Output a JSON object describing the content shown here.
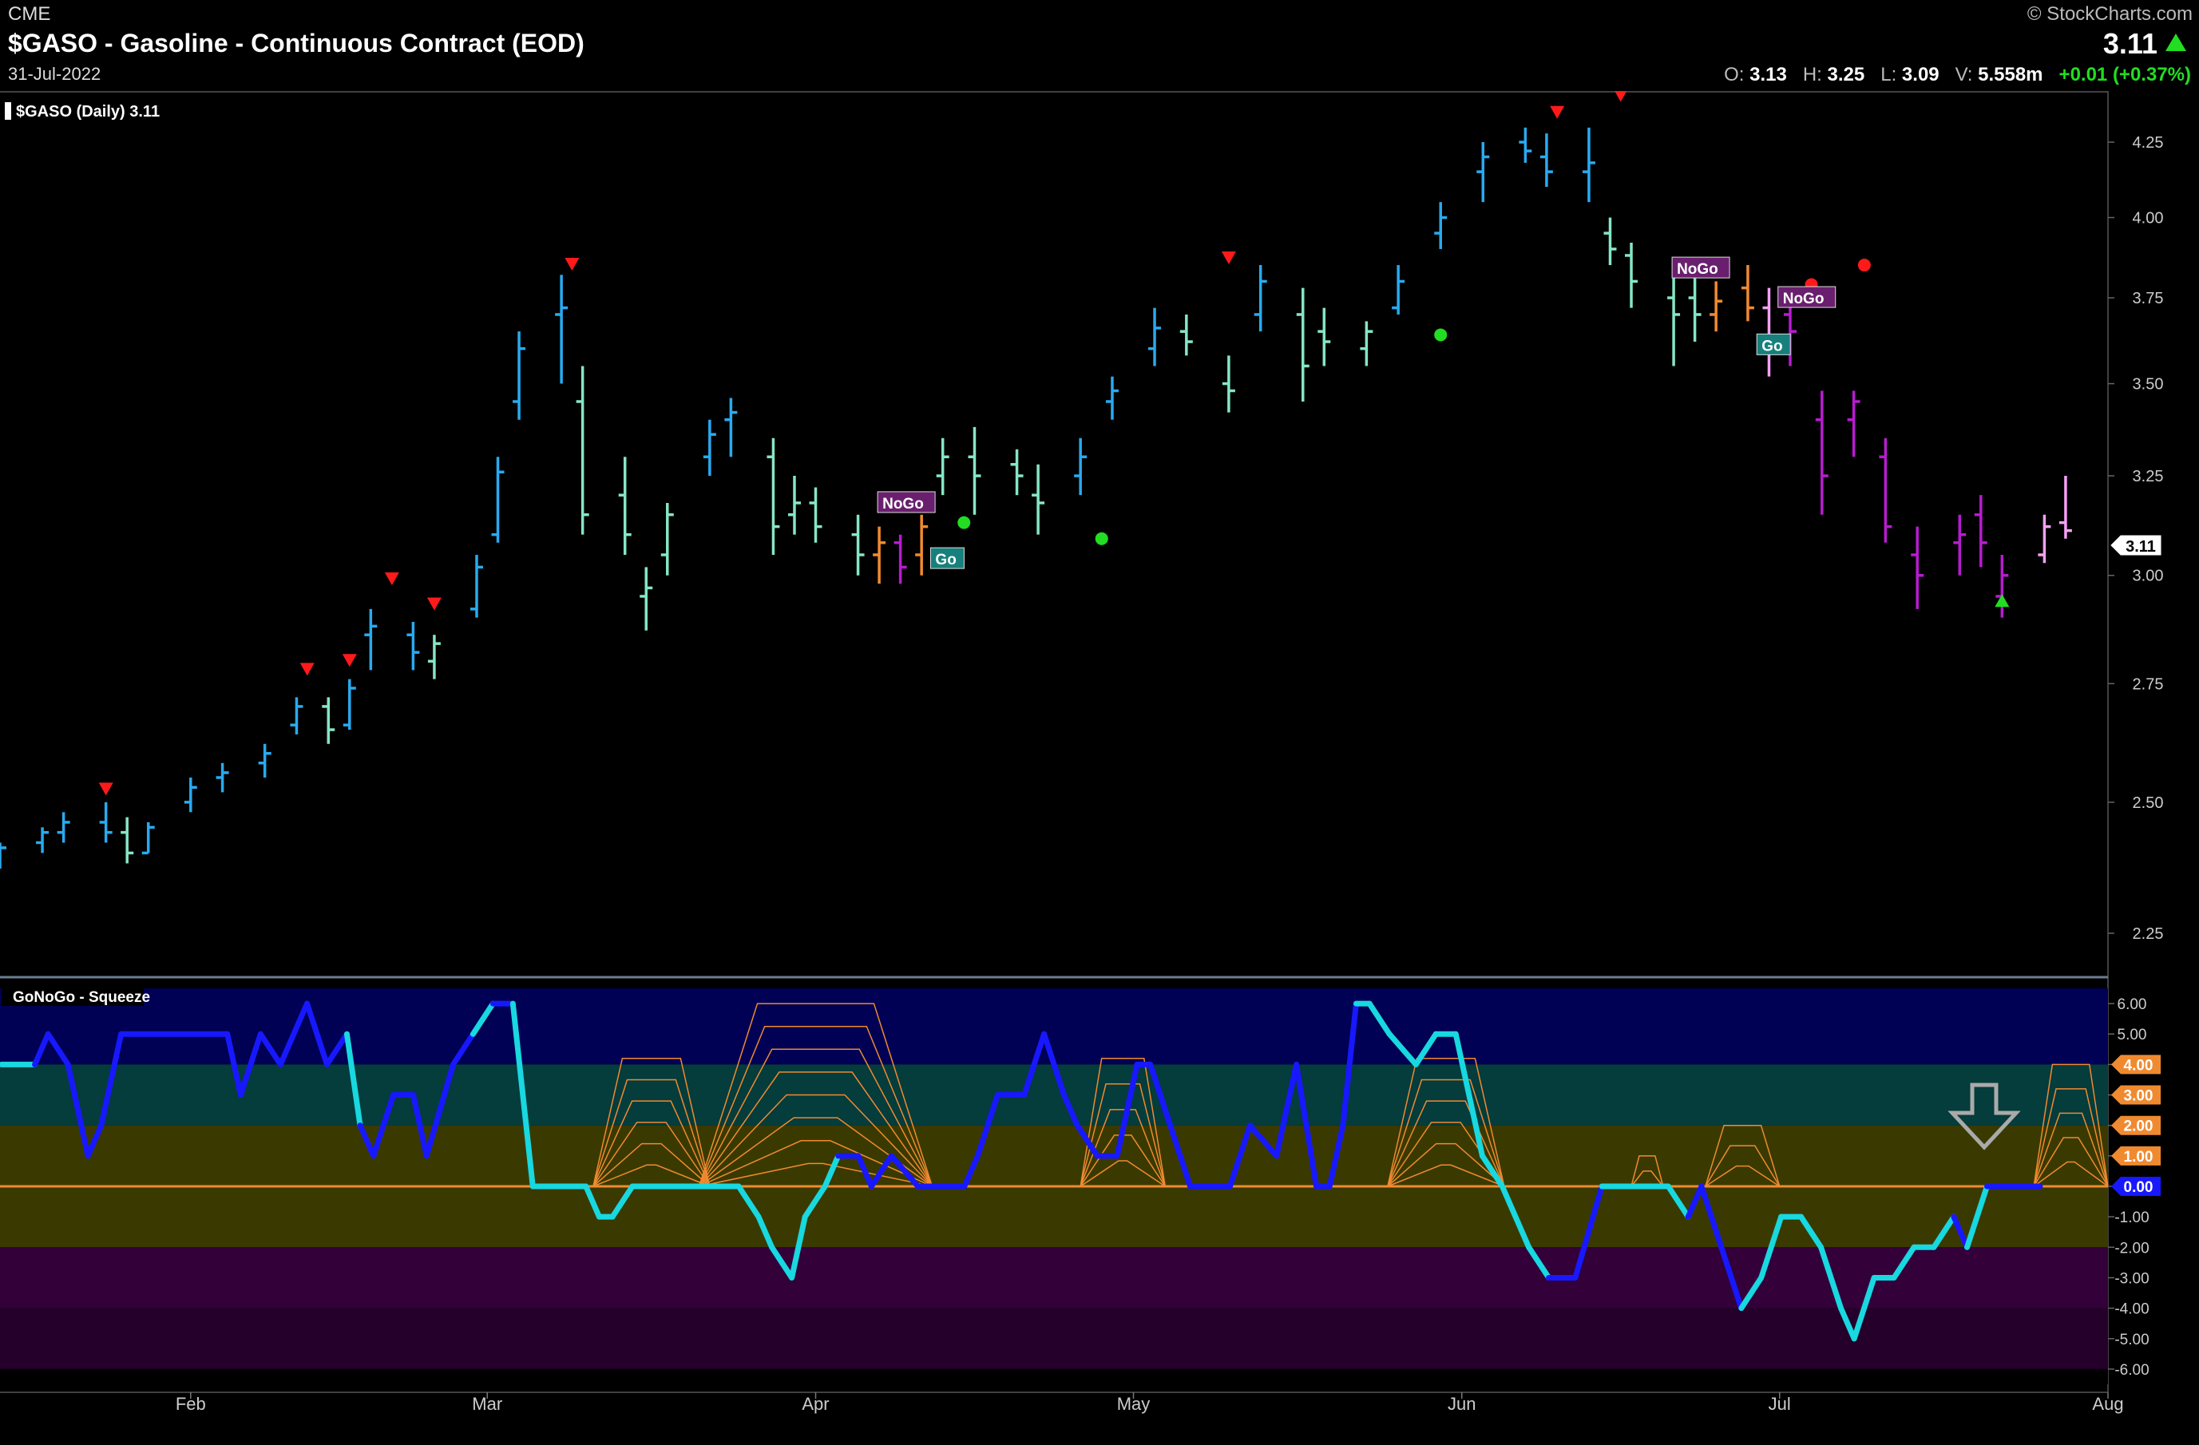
{
  "header": {
    "exchange": "CME",
    "title": "$GASO - Gasoline - Continuous Contract (EOD)",
    "date": "31-Jul-2022",
    "copyright": "© StockCharts.com",
    "last": "3.11",
    "open_label": "O:",
    "open": "3.13",
    "high_label": "H:",
    "high": "3.25",
    "low_label": "L:",
    "low": "3.09",
    "vol_label": "V:",
    "volume": "5.558m",
    "change": "+0.01 (+0.37%)"
  },
  "price_panel": {
    "legend": "$GASO (Daily) 3.11",
    "last_value_label": "3.11",
    "y_ticks": [
      "4.25",
      "4.00",
      "3.75",
      "3.50",
      "3.25",
      "3.00",
      "2.75",
      "2.50",
      "2.25"
    ],
    "ylim": [
      2.2,
      4.4
    ],
    "scale": "log"
  },
  "indicator_panel": {
    "legend": "GoNoGo - Squeeze",
    "y_ticks": [
      "6.00",
      "5.00",
      "4.00",
      "3.00",
      "2.00",
      "1.00",
      "0.00",
      "-1.00",
      "-2.00",
      "-3.00",
      "-4.00",
      "-5.00",
      "-6.00"
    ],
    "highlighted_ticks": [
      "4.00",
      "3.00",
      "2.00",
      "1.00",
      "0.00"
    ],
    "ylim": [
      -6.5,
      6.5
    ]
  },
  "x_axis": {
    "labels": [
      "Feb",
      "Mar",
      "Apr",
      "May",
      "Jun",
      "Jul",
      "Aug"
    ]
  },
  "labels": {
    "nogo": "NoGo",
    "go": "Go"
  },
  "colors": {
    "strong_go": "#29aaf0",
    "go": "#85e6c5",
    "neutral": "#f08a30",
    "nogo": "#f5a0f5",
    "strong_nogo": "#b81bd0",
    "osc_blue": "#1818ff",
    "osc_cyan": "#18d8e0",
    "zero_line": "#f08a30",
    "sell_triangle": "#ff1a1a",
    "buy_triangle": "#22dd22"
  },
  "chart_data": [
    {
      "type": "ohlc",
      "name": "$GASO (Daily)",
      "x_range": [
        "2022-01-14",
        "2022-08-01"
      ],
      "points": [
        [
          "2022-01-14",
          2.4,
          2.42,
          2.37,
          2.41,
          "strong_go"
        ],
        [
          "2022-01-18",
          2.42,
          2.45,
          2.4,
          2.44,
          "strong_go"
        ],
        [
          "2022-01-20",
          2.44,
          2.48,
          2.42,
          2.46,
          "strong_go"
        ],
        [
          "2022-01-24",
          2.46,
          2.5,
          2.42,
          2.44,
          "strong_go"
        ],
        [
          "2022-01-26",
          2.44,
          2.47,
          2.38,
          2.4,
          "go"
        ],
        [
          "2022-01-28",
          2.4,
          2.46,
          2.4,
          2.45,
          "strong_go"
        ],
        [
          "2022-02-01",
          2.5,
          2.55,
          2.48,
          2.53,
          "strong_go"
        ],
        [
          "2022-02-04",
          2.55,
          2.58,
          2.52,
          2.56,
          "strong_go"
        ],
        [
          "2022-02-08",
          2.58,
          2.62,
          2.55,
          2.6,
          "strong_go"
        ],
        [
          "2022-02-11",
          2.66,
          2.72,
          2.64,
          2.7,
          "strong_go"
        ],
        [
          "2022-02-14",
          2.7,
          2.72,
          2.62,
          2.65,
          "go"
        ],
        [
          "2022-02-16",
          2.66,
          2.76,
          2.65,
          2.74,
          "strong_go"
        ],
        [
          "2022-02-18",
          2.86,
          2.92,
          2.78,
          2.88,
          "strong_go"
        ],
        [
          "2022-02-22",
          2.86,
          2.89,
          2.78,
          2.82,
          "strong_go"
        ],
        [
          "2022-02-24",
          2.8,
          2.86,
          2.76,
          2.84,
          "go"
        ],
        [
          "2022-02-28",
          2.92,
          3.05,
          2.9,
          3.02,
          "strong_go"
        ],
        [
          "2022-03-02",
          3.1,
          3.3,
          3.08,
          3.26,
          "strong_go"
        ],
        [
          "2022-03-04",
          3.45,
          3.65,
          3.4,
          3.6,
          "strong_go"
        ],
        [
          "2022-03-08",
          3.7,
          3.82,
          3.5,
          3.72,
          "strong_go"
        ],
        [
          "2022-03-10",
          3.45,
          3.55,
          3.1,
          3.15,
          "go"
        ],
        [
          "2022-03-14",
          3.2,
          3.3,
          3.05,
          3.1,
          "go"
        ],
        [
          "2022-03-16",
          2.95,
          3.02,
          2.87,
          2.97,
          "go"
        ],
        [
          "2022-03-18",
          3.05,
          3.18,
          3.0,
          3.15,
          "go"
        ],
        [
          "2022-03-22",
          3.3,
          3.4,
          3.25,
          3.36,
          "strong_go"
        ],
        [
          "2022-03-24",
          3.4,
          3.46,
          3.3,
          3.42,
          "strong_go"
        ],
        [
          "2022-03-28",
          3.3,
          3.35,
          3.05,
          3.12,
          "go"
        ],
        [
          "2022-03-30",
          3.15,
          3.25,
          3.1,
          3.18,
          "go"
        ],
        [
          "2022-04-01",
          3.18,
          3.22,
          3.08,
          3.12,
          "go"
        ],
        [
          "2022-04-05",
          3.1,
          3.15,
          3.0,
          3.05,
          "go"
        ],
        [
          "2022-04-07",
          3.05,
          3.12,
          2.98,
          3.08,
          "neutral"
        ],
        [
          "2022-04-09",
          3.08,
          3.1,
          2.98,
          3.02,
          "strong_nogo"
        ],
        [
          "2022-04-11",
          3.05,
          3.15,
          3.0,
          3.12,
          "neutral"
        ],
        [
          "2022-04-13",
          3.25,
          3.35,
          3.2,
          3.3,
          "go"
        ],
        [
          "2022-04-16",
          3.3,
          3.38,
          3.15,
          3.25,
          "go"
        ],
        [
          "2022-04-20",
          3.28,
          3.32,
          3.2,
          3.25,
          "go"
        ],
        [
          "2022-04-22",
          3.2,
          3.28,
          3.1,
          3.18,
          "go"
        ],
        [
          "2022-04-26",
          3.25,
          3.35,
          3.2,
          3.3,
          "strong_go"
        ],
        [
          "2022-04-29",
          3.45,
          3.52,
          3.4,
          3.48,
          "strong_go"
        ],
        [
          "2022-05-03",
          3.6,
          3.72,
          3.55,
          3.66,
          "strong_go"
        ],
        [
          "2022-05-06",
          3.65,
          3.7,
          3.58,
          3.62,
          "go"
        ],
        [
          "2022-05-10",
          3.5,
          3.58,
          3.42,
          3.48,
          "go"
        ],
        [
          "2022-05-13",
          3.7,
          3.85,
          3.65,
          3.8,
          "strong_go"
        ],
        [
          "2022-05-17",
          3.7,
          3.78,
          3.45,
          3.55,
          "go"
        ],
        [
          "2022-05-19",
          3.65,
          3.72,
          3.55,
          3.62,
          "go"
        ],
        [
          "2022-05-23",
          3.6,
          3.68,
          3.55,
          3.65,
          "go"
        ],
        [
          "2022-05-26",
          3.72,
          3.85,
          3.7,
          3.8,
          "strong_go"
        ],
        [
          "2022-05-30",
          3.95,
          4.05,
          3.9,
          4.0,
          "strong_go"
        ],
        [
          "2022-06-03",
          4.15,
          4.25,
          4.05,
          4.2,
          "strong_go"
        ],
        [
          "2022-06-07",
          4.25,
          4.3,
          4.18,
          4.22,
          "strong_go"
        ],
        [
          "2022-06-09",
          4.2,
          4.28,
          4.1,
          4.15,
          "strong_go"
        ],
        [
          "2022-06-13",
          4.15,
          4.3,
          4.05,
          4.18,
          "strong_go"
        ],
        [
          "2022-06-15",
          3.95,
          4.0,
          3.85,
          3.9,
          "go"
        ],
        [
          "2022-06-17",
          3.88,
          3.92,
          3.72,
          3.8,
          "go"
        ],
        [
          "2022-06-21",
          3.75,
          3.85,
          3.55,
          3.7,
          "go"
        ],
        [
          "2022-06-23",
          3.75,
          3.82,
          3.62,
          3.7,
          "go"
        ],
        [
          "2022-06-25",
          3.7,
          3.8,
          3.65,
          3.74,
          "neutral"
        ],
        [
          "2022-06-28",
          3.78,
          3.85,
          3.68,
          3.72,
          "neutral"
        ],
        [
          "2022-06-30",
          3.72,
          3.78,
          3.52,
          3.6,
          "nogo"
        ],
        [
          "2022-07-02",
          3.7,
          3.75,
          3.55,
          3.65,
          "strong_nogo"
        ],
        [
          "2022-07-05",
          3.4,
          3.48,
          3.15,
          3.25,
          "strong_nogo"
        ],
        [
          "2022-07-08",
          3.4,
          3.48,
          3.3,
          3.45,
          "strong_nogo"
        ],
        [
          "2022-07-11",
          3.3,
          3.35,
          3.08,
          3.12,
          "strong_nogo"
        ],
        [
          "2022-07-14",
          3.05,
          3.12,
          2.92,
          3.0,
          "strong_nogo"
        ],
        [
          "2022-07-18",
          3.08,
          3.15,
          3.0,
          3.1,
          "strong_nogo"
        ],
        [
          "2022-07-20",
          3.15,
          3.2,
          3.02,
          3.08,
          "strong_nogo"
        ],
        [
          "2022-07-22",
          2.95,
          3.05,
          2.9,
          3.0,
          "strong_nogo"
        ],
        [
          "2022-07-26",
          3.05,
          3.15,
          3.03,
          3.12,
          "nogo"
        ],
        [
          "2022-07-28",
          3.13,
          3.25,
          3.09,
          3.11,
          "nogo"
        ]
      ]
    },
    {
      "type": "line",
      "name": "GoNoGo Oscillator",
      "points": [
        [
          "2022-01-14",
          4.0,
          "osc_blue"
        ],
        [
          "2022-01-19",
          4.0,
          "osc_cyan"
        ],
        [
          "2022-01-21",
          5.0,
          "osc_blue"
        ],
        [
          "2022-01-24",
          4.0,
          "osc_blue"
        ],
        [
          "2022-01-27",
          1.0,
          "osc_blue"
        ],
        [
          "2022-01-29",
          2.0,
          "osc_blue"
        ],
        [
          "2022-02-01",
          5.0,
          "osc_blue"
        ],
        [
          "2022-02-17",
          5.0,
          "osc_blue"
        ],
        [
          "2022-02-19",
          3.0,
          "osc_blue"
        ],
        [
          "2022-02-22",
          5.0,
          "osc_blue"
        ],
        [
          "2022-02-25",
          4.0,
          "osc_blue"
        ],
        [
          "2022-03-01",
          6.0,
          "osc_blue"
        ],
        [
          "2022-03-04",
          4.0,
          "osc_blue"
        ],
        [
          "2022-03-07",
          5.0,
          "osc_blue"
        ],
        [
          "2022-03-09",
          2.0,
          "osc_cyan"
        ],
        [
          "2022-03-11",
          1.0,
          "osc_blue"
        ],
        [
          "2022-03-14",
          3.0,
          "osc_blue"
        ],
        [
          "2022-03-17",
          3.0,
          "osc_blue"
        ],
        [
          "2022-03-19",
          1.0,
          "osc_blue"
        ],
        [
          "2022-03-23",
          4.0,
          "osc_blue"
        ],
        [
          "2022-03-26",
          5.0,
          "osc_blue"
        ],
        [
          "2022-03-29",
          6.0,
          "osc_cyan"
        ],
        [
          "2022-04-01",
          6.0,
          "osc_blue"
        ],
        [
          "2022-04-04",
          0.0,
          "osc_cyan"
        ],
        [
          "2022-04-12",
          0.0,
          "osc_cyan"
        ],
        [
          "2022-04-14",
          -1.0,
          "osc_cyan"
        ],
        [
          "2022-04-16",
          -1.0,
          "osc_cyan"
        ],
        [
          "2022-04-19",
          0.0,
          "osc_cyan"
        ],
        [
          "2022-05-05",
          0.0,
          "osc_cyan"
        ],
        [
          "2022-05-08",
          -1.0,
          "osc_cyan"
        ],
        [
          "2022-05-10",
          -2.0,
          "osc_cyan"
        ],
        [
          "2022-05-13",
          -3.0,
          "osc_cyan"
        ],
        [
          "2022-05-15",
          -1.0,
          "osc_cyan"
        ],
        [
          "2022-05-18",
          0.0,
          "osc_cyan"
        ],
        [
          "2022-05-20",
          1.0,
          "osc_cyan"
        ],
        [
          "2022-05-23",
          1.0,
          "osc_blue"
        ],
        [
          "2022-05-25",
          0.0,
          "osc_blue"
        ],
        [
          "2022-05-28",
          1.0,
          "osc_blue"
        ],
        [
          "2022-06-01",
          0.0,
          "osc_blue"
        ],
        [
          "2022-06-08",
          0.0,
          "osc_blue"
        ],
        [
          "2022-06-10",
          1.0,
          "osc_blue"
        ],
        [
          "2022-06-13",
          3.0,
          "osc_blue"
        ],
        [
          "2022-06-17",
          3.0,
          "osc_blue"
        ],
        [
          "2022-06-20",
          5.0,
          "osc_blue"
        ],
        [
          "2022-06-23",
          3.0,
          "osc_blue"
        ],
        [
          "2022-06-25",
          2.0,
          "osc_blue"
        ],
        [
          "2022-06-28",
          1.0,
          "osc_blue"
        ],
        [
          "2022-07-01",
          1.0,
          "osc_blue"
        ],
        [
          "2022-07-04",
          4.0,
          "osc_blue"
        ],
        [
          "2022-07-06",
          4.0,
          "osc_blue"
        ],
        [
          "2022-07-09",
          2.0,
          "osc_blue"
        ],
        [
          "2022-07-12",
          0.0,
          "osc_blue"
        ],
        [
          "2022-07-18",
          0.0,
          "osc_blue"
        ],
        [
          "2022-07-21",
          2.0,
          "osc_blue"
        ],
        [
          "2022-07-25",
          1.0,
          "osc_blue"
        ],
        [
          "2022-07-28",
          4.0,
          "osc_blue"
        ],
        [
          "2022-07-31",
          0.0,
          "osc_blue"
        ],
        [
          "2022-08-02",
          0.0,
          "osc_blue"
        ],
        [
          "2022-08-04",
          2.0,
          "osc_blue"
        ],
        [
          "2022-08-06",
          6.0,
          "osc_blue"
        ],
        [
          "2022-08-08",
          6.0,
          "osc_cyan"
        ],
        [
          "2022-08-11",
          5.0,
          "osc_cyan"
        ],
        [
          "2022-08-15",
          4.0,
          "osc_cyan"
        ],
        [
          "2022-08-18",
          5.0,
          "osc_cyan"
        ],
        [
          "2022-08-21",
          5.0,
          "osc_cyan"
        ],
        [
          "2022-08-25",
          1.0,
          "osc_cyan"
        ],
        [
          "2022-08-28",
          0.0,
          "osc_cyan"
        ],
        [
          "2022-09-01",
          -2.0,
          "osc_cyan"
        ],
        [
          "2022-09-04",
          -3.0,
          "osc_cyan"
        ],
        [
          "2022-09-08",
          -3.0,
          "osc_blue"
        ],
        [
          "2022-09-12",
          0.0,
          "osc_blue"
        ],
        [
          "2022-09-22",
          0.0,
          "osc_cyan"
        ],
        [
          "2022-09-25",
          -1.0,
          "osc_cyan"
        ],
        [
          "2022-09-27",
          0.0,
          "osc_blue"
        ],
        [
          "2022-10-03",
          -4.0,
          "osc_blue"
        ],
        [
          "2022-10-06",
          -3.0,
          "osc_cyan"
        ],
        [
          "2022-10-09",
          -1.0,
          "osc_cyan"
        ],
        [
          "2022-10-12",
          -1.0,
          "osc_cyan"
        ],
        [
          "2022-10-15",
          -2.0,
          "osc_cyan"
        ],
        [
          "2022-10-18",
          -4.0,
          "osc_cyan"
        ],
        [
          "2022-10-20",
          -5.0,
          "osc_cyan"
        ],
        [
          "2022-10-23",
          -3.0,
          "osc_cyan"
        ],
        [
          "2022-10-26",
          -3.0,
          "osc_cyan"
        ],
        [
          "2022-10-29",
          -2.0,
          "osc_cyan"
        ],
        [
          "2022-11-01",
          -2.0,
          "osc_cyan"
        ],
        [
          "2022-11-04",
          -1.0,
          "osc_cyan"
        ],
        [
          "2022-11-06",
          -2.0,
          "osc_blue"
        ],
        [
          "2022-11-09",
          0.0,
          "osc_cyan"
        ],
        [
          "2022-11-17",
          0.0,
          "osc_blue"
        ]
      ]
    }
  ]
}
